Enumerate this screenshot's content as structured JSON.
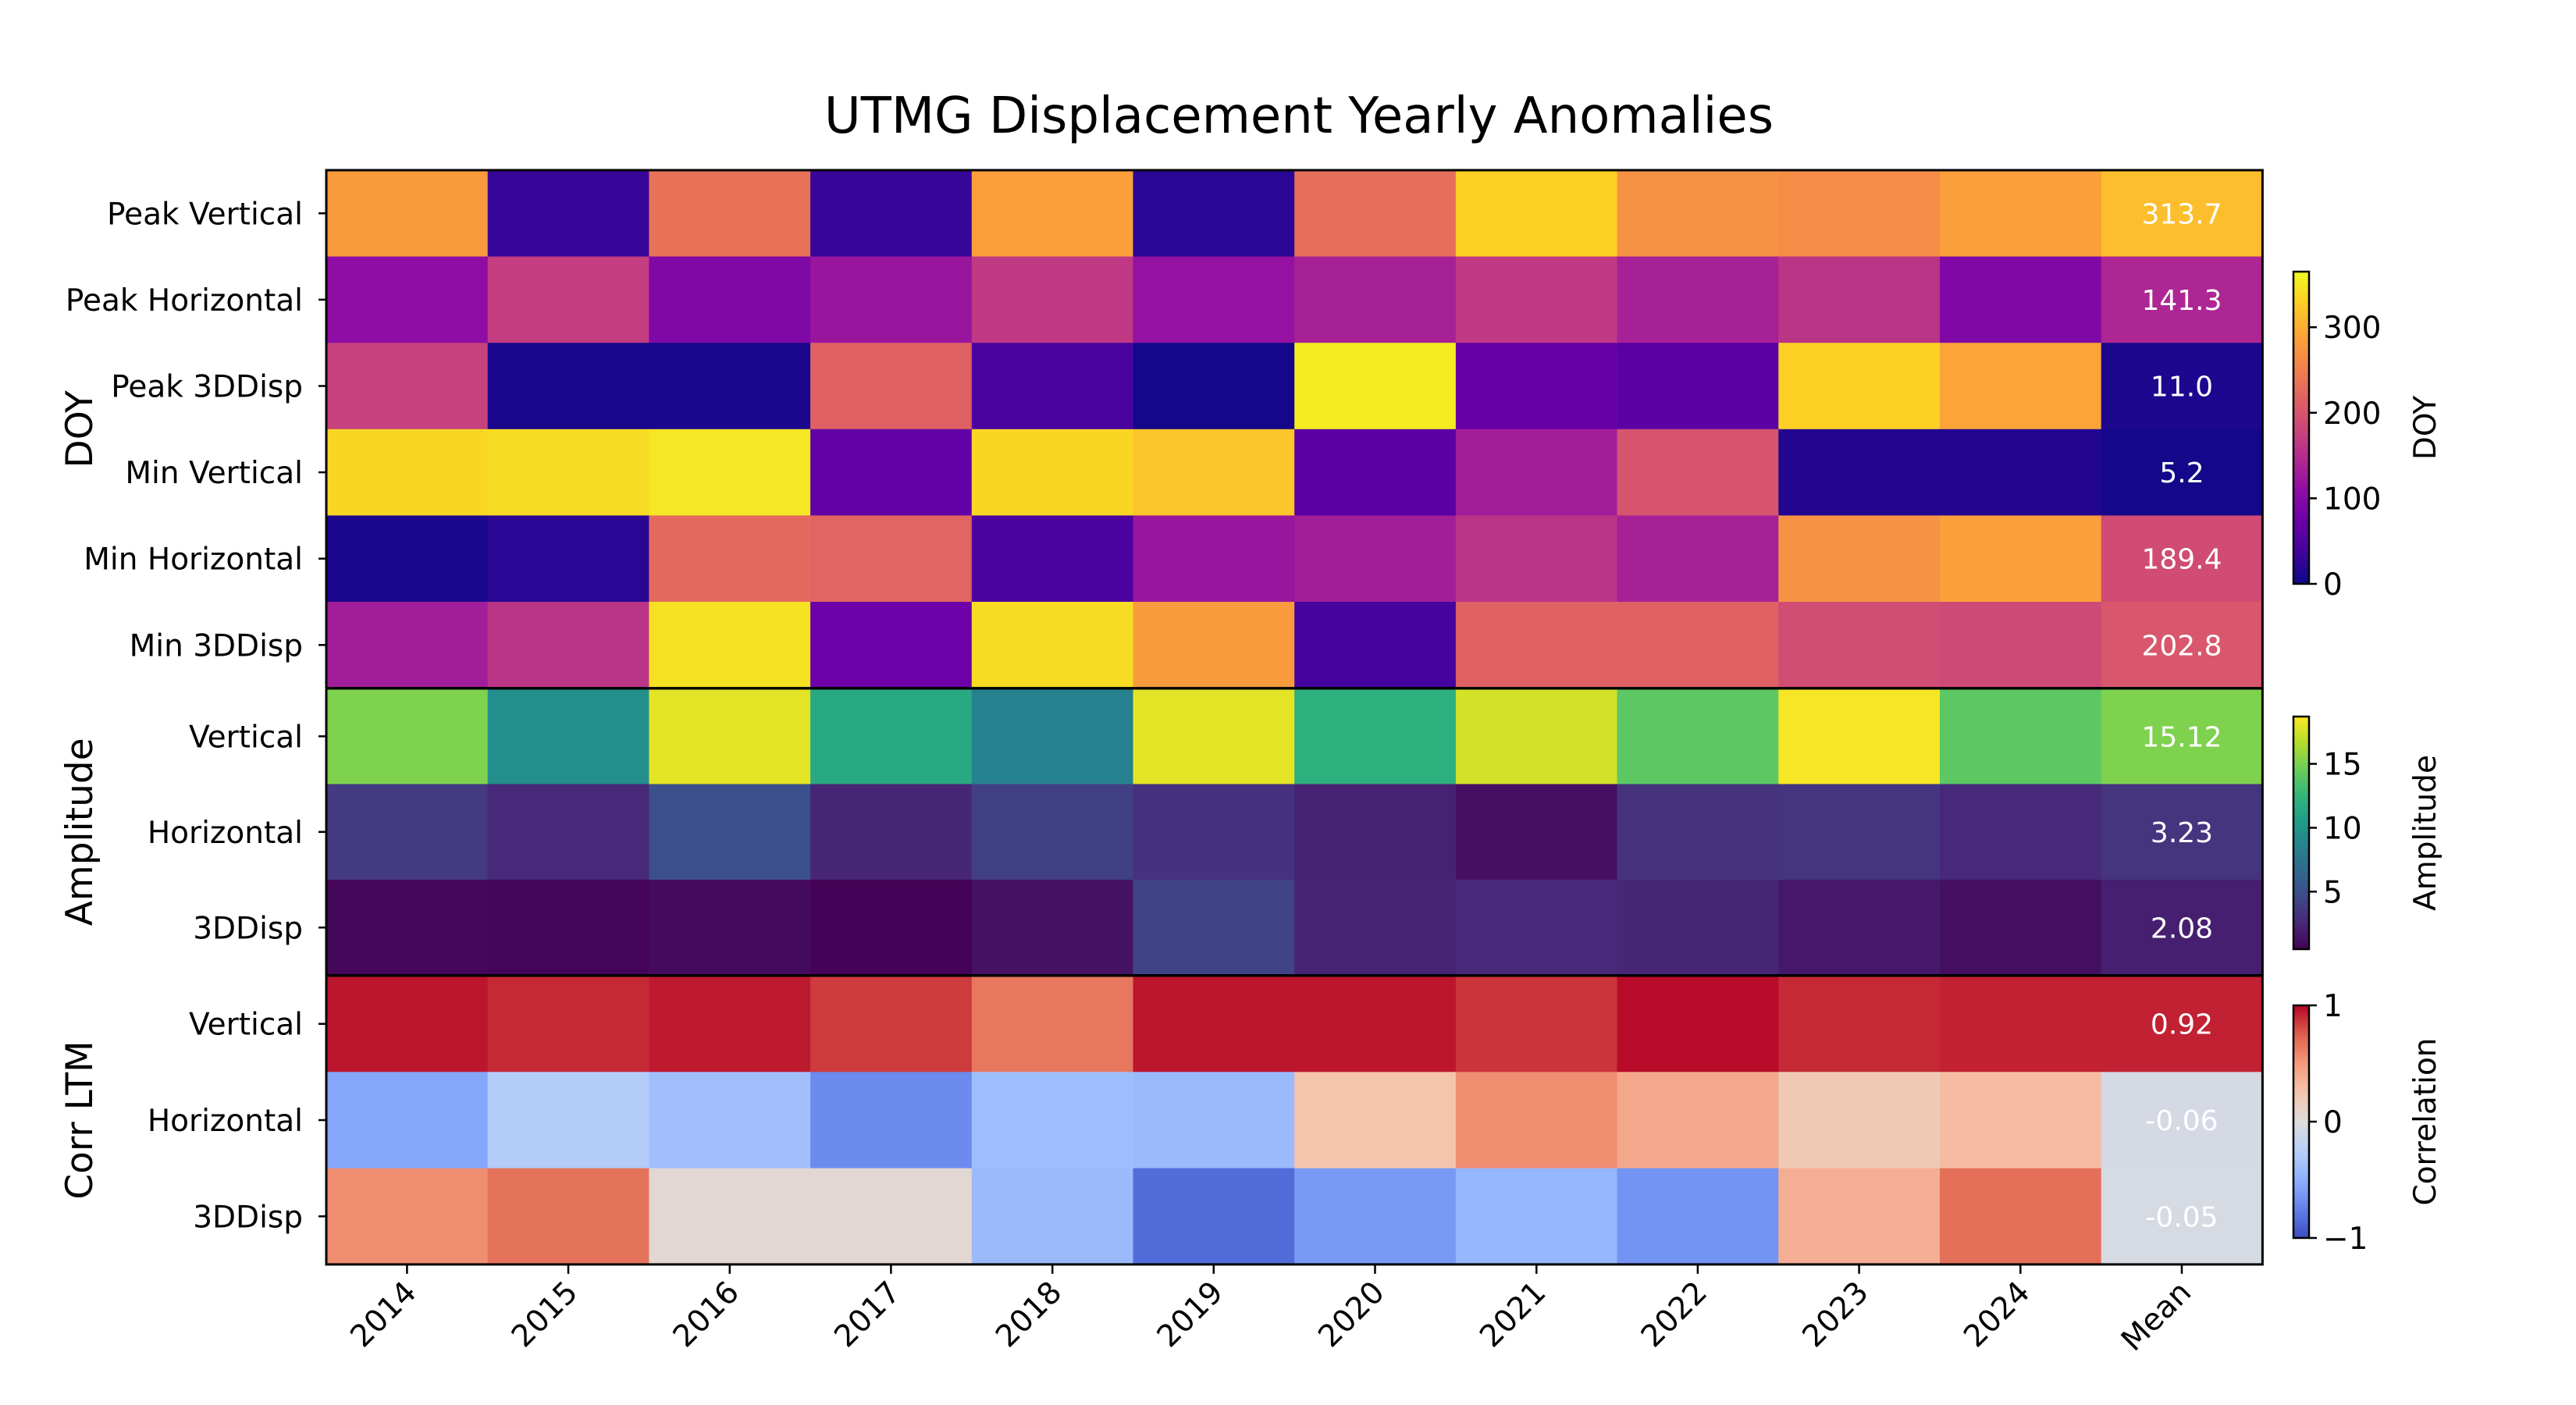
{
  "chart_data": {
    "type": "heatmap",
    "title": "UTMG Displacement Yearly Anomalies",
    "columns": [
      "2014",
      "2015",
      "2016",
      "2017",
      "2018",
      "2019",
      "2020",
      "2021",
      "2022",
      "2023",
      "2024",
      "Mean"
    ],
    "panels": [
      {
        "name": "DOY",
        "ylabel": "DOY",
        "colormap": "plasma",
        "vmin": 0,
        "vmax": 365,
        "colorbar": {
          "label": "DOY",
          "ticks": [
            0,
            100,
            200,
            300
          ],
          "tick_labels": [
            "0",
            "100",
            "200",
            "300"
          ]
        },
        "rows": [
          {
            "label": "Peak Vertical",
            "values": [
              280,
              30,
              235,
              30,
              285,
              20,
              230,
              330,
              270,
              265,
              285,
              313.7
            ],
            "mean_label": "313.7"
          },
          {
            "label": "Peak Horizontal",
            "values": [
              110,
              170,
              95,
              120,
              165,
              115,
              135,
              165,
              135,
              160,
              95,
              141.3
            ],
            "mean_label": "141.3"
          },
          {
            "label": "Peak 3DDisp",
            "values": [
              175,
              10,
              10,
              215,
              45,
              5,
              355,
              70,
              60,
              330,
              290,
              11.0
            ],
            "mean_label": "11.0"
          },
          {
            "label": "Min Vertical",
            "values": [
              335,
              340,
              350,
              65,
              335,
              320,
              60,
              130,
              200,
              15,
              15,
              5.2
            ],
            "mean_label": "5.2"
          },
          {
            "label": "Min Horizontal",
            "values": [
              10,
              20,
              225,
              220,
              45,
              120,
              130,
              160,
              135,
              270,
              285,
              189.4
            ],
            "mean_label": "189.4"
          },
          {
            "label": "Min 3DDisp",
            "values": [
              130,
              160,
              345,
              75,
              340,
              280,
              40,
              215,
              215,
              190,
              185,
              202.8
            ],
            "mean_label": "202.8"
          }
        ]
      },
      {
        "name": "Amplitude",
        "ylabel": "Amplitude",
        "colormap": "viridis",
        "vmin": 0.5,
        "vmax": 18.7,
        "colorbar": {
          "label": "Amplitude",
          "ticks": [
            5,
            10,
            15
          ],
          "tick_labels": [
            "5",
            "10",
            "15"
          ]
        },
        "rows": [
          {
            "label": "Vertical",
            "values": [
              15.1,
              9.5,
              18.0,
              11.5,
              8.5,
              18.0,
              12.0,
              17.5,
              14.0,
              18.5,
              14.0,
              15.12
            ],
            "mean_label": "15.12"
          },
          {
            "label": "Horizontal",
            "values": [
              3.6,
              2.6,
              5.0,
              2.4,
              4.0,
              3.1,
              2.2,
              1.3,
              3.2,
              3.3,
              2.6,
              3.23
            ],
            "mean_label": "3.23"
          },
          {
            "label": "3DDisp",
            "values": [
              0.8,
              0.7,
              1.0,
              0.6,
              1.4,
              4.2,
              2.3,
              2.6,
              2.4,
              1.7,
              1.2,
              2.08
            ],
            "mean_label": "2.08"
          }
        ]
      },
      {
        "name": "Corr LTM",
        "ylabel": "Corr LTM",
        "colormap": "coolwarm",
        "vmin": -1,
        "vmax": 1,
        "colorbar": {
          "label": "Correlation",
          "ticks": [
            -1,
            0,
            1
          ],
          "tick_labels": [
            "−1",
            "0",
            "1"
          ]
        },
        "rows": [
          {
            "label": "Vertical",
            "values": [
              0.95,
              0.9,
              0.94,
              0.85,
              0.65,
              0.95,
              0.95,
              0.87,
              0.98,
              0.9,
              0.92,
              0.92
            ],
            "mean_label": "0.92"
          },
          {
            "label": "Horizontal",
            "values": [
              -0.55,
              -0.28,
              -0.38,
              -0.7,
              -0.4,
              -0.42,
              0.25,
              0.55,
              0.42,
              0.2,
              0.3,
              -0.06
            ],
            "mean_label": "-0.06"
          },
          {
            "label": "3DDisp",
            "values": [
              0.55,
              0.67,
              0.05,
              0.05,
              -0.42,
              -0.85,
              -0.62,
              -0.45,
              -0.65,
              0.38,
              0.68,
              -0.05
            ],
            "mean_label": "-0.05"
          }
        ]
      }
    ]
  }
}
